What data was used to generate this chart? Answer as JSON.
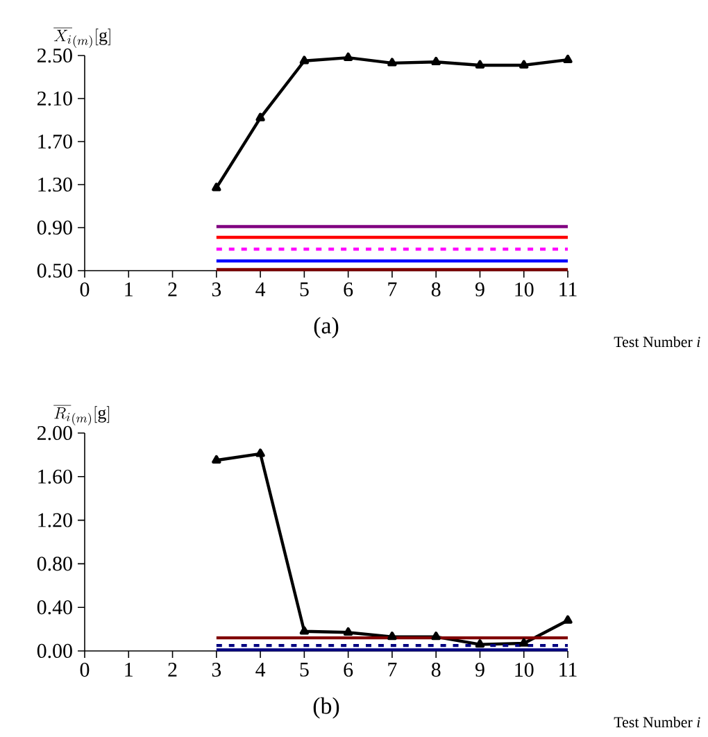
{
  "chart_data": [
    {
      "type": "line",
      "title": "(a)",
      "xlabel": "Test Number *i*",
      "ylabel": "\\overline{X_i}_{(m)}[\\mathrm{g}]",
      "x": [
        3,
        4,
        5,
        6,
        7,
        8,
        9,
        10,
        11
      ],
      "series": [
        {
          "color": "#000000",
          "marker": "triangle",
          "values": [
            1.27,
            1.92,
            2.45,
            2.48,
            2.43,
            2.44,
            2.41,
            2.41,
            2.46
          ]
        },
        {
          "color": "#800080",
          "values": [
            0.91,
            0.91,
            0.91,
            0.91,
            0.91,
            0.91,
            0.91,
            0.91,
            0.91
          ]
        },
        {
          "color": "#ff0000",
          "values": [
            0.81,
            0.81,
            0.81,
            0.81,
            0.81,
            0.81,
            0.81,
            0.81,
            0.81
          ]
        },
        {
          "color": "#ff00ff",
          "line_style": "dashed",
          "values": [
            0.7,
            0.7,
            0.7,
            0.7,
            0.7,
            0.7,
            0.7,
            0.7,
            0.7
          ]
        },
        {
          "color": "#0000ff",
          "values": [
            0.59,
            0.59,
            0.59,
            0.59,
            0.59,
            0.59,
            0.59,
            0.59,
            0.59
          ]
        },
        {
          "color": "#800000",
          "values": [
            0.51,
            0.51,
            0.51,
            0.51,
            0.51,
            0.51,
            0.51,
            0.51,
            0.51
          ]
        }
      ],
      "xlim": [
        0,
        11
      ],
      "xticks": [
        0,
        1,
        2,
        3,
        4,
        5,
        6,
        7,
        8,
        9,
        10,
        11
      ],
      "ylim": [
        0.5,
        2.5
      ],
      "yticks": [
        {
          "value": 0.5,
          "label": "0.50"
        },
        {
          "value": 0.9,
          "label": "0.90"
        },
        {
          "value": 1.3,
          "label": "1.30"
        },
        {
          "value": 1.7,
          "label": "1.70"
        },
        {
          "value": 2.1,
          "label": "2.10"
        },
        {
          "value": 2.5,
          "label": "2.50"
        }
      ],
      "grid": false
    },
    {
      "type": "line",
      "title": "(b)",
      "xlabel": "Test Number *i*",
      "ylabel": "\\overline{R_i}_{(m)}[\\mathrm{g}]",
      "x": [
        3,
        4,
        5,
        6,
        7,
        8,
        9,
        10,
        11
      ],
      "series": [
        {
          "color": "#000000",
          "marker": "triangle",
          "values": [
            1.75,
            1.81,
            0.18,
            0.17,
            0.13,
            0.13,
            0.06,
            0.07,
            0.28
          ]
        },
        {
          "color": "#800000",
          "values": [
            0.12,
            0.12,
            0.12,
            0.12,
            0.12,
            0.12,
            0.12,
            0.12,
            0.12
          ]
        },
        {
          "color": "#000080",
          "line_style": "dashed",
          "values": [
            0.05,
            0.05,
            0.05,
            0.05,
            0.05,
            0.05,
            0.05,
            0.05,
            0.05
          ]
        },
        {
          "color": "#000080",
          "values": [
            0.01,
            0.01,
            0.01,
            0.01,
            0.01,
            0.01,
            0.01,
            0.01,
            0.01
          ]
        }
      ],
      "xlim": [
        0,
        11
      ],
      "xticks": [
        0,
        1,
        2,
        3,
        4,
        5,
        6,
        7,
        8,
        9,
        10,
        11
      ],
      "ylim": [
        0,
        2
      ],
      "yticks": [
        {
          "value": 0,
          "label": "0.00"
        },
        {
          "value": 0.4,
          "label": "0.40"
        },
        {
          "value": 0.8,
          "label": "0.80"
        },
        {
          "value": 1.2,
          "label": "1.20"
        },
        {
          "value": 1.6,
          "label": "1.60"
        },
        {
          "value": 2.0,
          "label": "2.00"
        }
      ],
      "grid": false
    }
  ]
}
